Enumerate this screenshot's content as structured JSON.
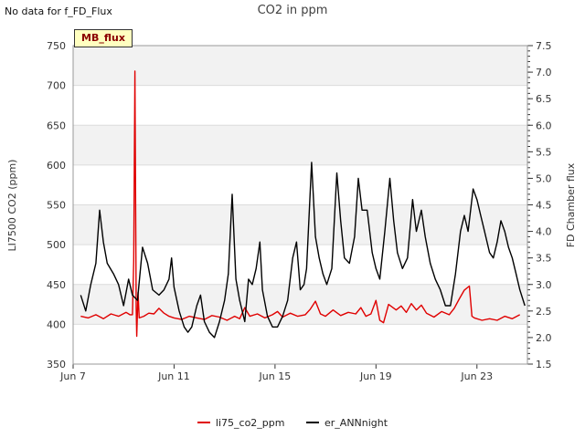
{
  "note": "No data for f_FD_Flux",
  "chart_data": {
    "type": "line",
    "title": "CO2 in ppm",
    "badge": "MB_flux",
    "ylabel_left": "LI7500 CO2 (ppm)",
    "ylabel_right": "FD Chamber flux",
    "ylim_left": [
      350,
      750
    ],
    "yticks_left": [
      350,
      400,
      450,
      500,
      550,
      600,
      650,
      700,
      750
    ],
    "ylim_right": [
      1.5,
      7.5
    ],
    "yticks_right": [
      "1.5",
      "2.0",
      "2.5",
      "3.0",
      "3.5",
      "4.0",
      "4.5",
      "5.0",
      "5.5",
      "6.0",
      "6.5",
      "7.0",
      "7.5"
    ],
    "xlim": [
      7,
      25
    ],
    "xticks": [
      {
        "day": 7,
        "label": "Jun 7"
      },
      {
        "day": 11,
        "label": "Jun 11"
      },
      {
        "day": 15,
        "label": "Jun 15"
      },
      {
        "day": 19,
        "label": "Jun 19"
      },
      {
        "day": 23,
        "label": "Jun 23"
      }
    ],
    "grid": true,
    "legend_position": "bottom",
    "series": [
      {
        "name": "li75_co2_ppm",
        "color": "#e00000",
        "axis": "left",
        "points": [
          [
            7.3,
            410
          ],
          [
            7.6,
            408
          ],
          [
            7.9,
            412
          ],
          [
            8.2,
            407
          ],
          [
            8.5,
            413
          ],
          [
            8.8,
            410
          ],
          [
            9.1,
            415
          ],
          [
            9.25,
            412
          ],
          [
            9.35,
            412
          ],
          [
            9.4,
            480
          ],
          [
            9.45,
            718
          ],
          [
            9.5,
            420
          ],
          [
            9.52,
            385
          ],
          [
            9.57,
            440
          ],
          [
            9.62,
            408
          ],
          [
            9.8,
            410
          ],
          [
            10.0,
            414
          ],
          [
            10.2,
            413
          ],
          [
            10.4,
            420
          ],
          [
            10.6,
            414
          ],
          [
            10.8,
            410
          ],
          [
            11.0,
            408
          ],
          [
            11.3,
            406
          ],
          [
            11.6,
            410
          ],
          [
            11.9,
            408
          ],
          [
            12.2,
            406
          ],
          [
            12.5,
            411
          ],
          [
            12.8,
            409
          ],
          [
            13.1,
            405
          ],
          [
            13.4,
            410
          ],
          [
            13.6,
            407
          ],
          [
            13.8,
            421
          ],
          [
            14.0,
            410
          ],
          [
            14.3,
            413
          ],
          [
            14.6,
            408
          ],
          [
            14.9,
            412
          ],
          [
            15.1,
            416
          ],
          [
            15.3,
            409
          ],
          [
            15.6,
            414
          ],
          [
            15.9,
            410
          ],
          [
            16.2,
            412
          ],
          [
            16.4,
            419
          ],
          [
            16.6,
            429
          ],
          [
            16.8,
            413
          ],
          [
            17.0,
            410
          ],
          [
            17.3,
            418
          ],
          [
            17.6,
            411
          ],
          [
            17.9,
            415
          ],
          [
            18.2,
            413
          ],
          [
            18.4,
            421
          ],
          [
            18.6,
            410
          ],
          [
            18.8,
            413
          ],
          [
            19.0,
            430
          ],
          [
            19.15,
            405
          ],
          [
            19.3,
            402
          ],
          [
            19.5,
            425
          ],
          [
            19.8,
            418
          ],
          [
            20.0,
            423
          ],
          [
            20.2,
            415
          ],
          [
            20.4,
            426
          ],
          [
            20.6,
            418
          ],
          [
            20.8,
            424
          ],
          [
            21.0,
            414
          ],
          [
            21.3,
            409
          ],
          [
            21.6,
            416
          ],
          [
            21.9,
            412
          ],
          [
            22.1,
            420
          ],
          [
            22.3,
            432
          ],
          [
            22.5,
            443
          ],
          [
            22.7,
            448
          ],
          [
            22.8,
            410
          ],
          [
            22.9,
            408
          ],
          [
            23.2,
            405
          ],
          [
            23.5,
            407
          ],
          [
            23.8,
            405
          ],
          [
            24.1,
            410
          ],
          [
            24.4,
            407
          ],
          [
            24.7,
            412
          ]
        ]
      },
      {
        "name": "er_ANNnight",
        "color": "#000000",
        "axis": "right",
        "points": [
          [
            7.3,
            2.8
          ],
          [
            7.5,
            2.5
          ],
          [
            7.7,
            3.0
          ],
          [
            7.9,
            3.4
          ],
          [
            8.05,
            4.4
          ],
          [
            8.2,
            3.8
          ],
          [
            8.35,
            3.4
          ],
          [
            8.6,
            3.2
          ],
          [
            8.8,
            3.0
          ],
          [
            9.0,
            2.6
          ],
          [
            9.2,
            3.1
          ],
          [
            9.35,
            2.8
          ],
          [
            9.55,
            2.7
          ],
          [
            9.75,
            3.7
          ],
          [
            9.95,
            3.4
          ],
          [
            10.15,
            2.9
          ],
          [
            10.4,
            2.8
          ],
          [
            10.6,
            2.9
          ],
          [
            10.8,
            3.1
          ],
          [
            10.9,
            3.5
          ],
          [
            11.0,
            2.95
          ],
          [
            11.2,
            2.5
          ],
          [
            11.4,
            2.2
          ],
          [
            11.55,
            2.1
          ],
          [
            11.7,
            2.2
          ],
          [
            11.9,
            2.6
          ],
          [
            12.05,
            2.8
          ],
          [
            12.2,
            2.3
          ],
          [
            12.4,
            2.1
          ],
          [
            12.6,
            2.0
          ],
          [
            12.8,
            2.3
          ],
          [
            13.0,
            2.7
          ],
          [
            13.15,
            3.2
          ],
          [
            13.3,
            4.7
          ],
          [
            13.45,
            3.1
          ],
          [
            13.6,
            2.7
          ],
          [
            13.8,
            2.3
          ],
          [
            13.95,
            3.1
          ],
          [
            14.1,
            3.0
          ],
          [
            14.25,
            3.3
          ],
          [
            14.4,
            3.8
          ],
          [
            14.5,
            2.9
          ],
          [
            14.7,
            2.4
          ],
          [
            14.9,
            2.2
          ],
          [
            15.1,
            2.2
          ],
          [
            15.3,
            2.4
          ],
          [
            15.5,
            2.7
          ],
          [
            15.7,
            3.5
          ],
          [
            15.85,
            3.8
          ],
          [
            16.0,
            2.9
          ],
          [
            16.15,
            3.0
          ],
          [
            16.25,
            3.3
          ],
          [
            16.45,
            5.3
          ],
          [
            16.6,
            3.9
          ],
          [
            16.75,
            3.5
          ],
          [
            16.9,
            3.2
          ],
          [
            17.05,
            3.0
          ],
          [
            17.25,
            3.3
          ],
          [
            17.45,
            5.1
          ],
          [
            17.6,
            4.2
          ],
          [
            17.75,
            3.5
          ],
          [
            17.95,
            3.4
          ],
          [
            18.15,
            3.9
          ],
          [
            18.3,
            5.0
          ],
          [
            18.45,
            4.4
          ],
          [
            18.65,
            4.4
          ],
          [
            18.85,
            3.6
          ],
          [
            19.0,
            3.3
          ],
          [
            19.15,
            3.1
          ],
          [
            19.35,
            4.0
          ],
          [
            19.55,
            5.0
          ],
          [
            19.7,
            4.2
          ],
          [
            19.85,
            3.6
          ],
          [
            20.05,
            3.3
          ],
          [
            20.25,
            3.5
          ],
          [
            20.45,
            4.6
          ],
          [
            20.6,
            4.0
          ],
          [
            20.8,
            4.4
          ],
          [
            20.95,
            3.9
          ],
          [
            21.15,
            3.4
          ],
          [
            21.35,
            3.1
          ],
          [
            21.55,
            2.9
          ],
          [
            21.75,
            2.6
          ],
          [
            21.95,
            2.6
          ],
          [
            22.15,
            3.2
          ],
          [
            22.35,
            4.0
          ],
          [
            22.5,
            4.3
          ],
          [
            22.65,
            4.0
          ],
          [
            22.85,
            4.8
          ],
          [
            23.0,
            4.6
          ],
          [
            23.15,
            4.3
          ],
          [
            23.3,
            4.0
          ],
          [
            23.5,
            3.6
          ],
          [
            23.65,
            3.5
          ],
          [
            23.8,
            3.8
          ],
          [
            23.95,
            4.2
          ],
          [
            24.1,
            4.0
          ],
          [
            24.25,
            3.7
          ],
          [
            24.4,
            3.5
          ],
          [
            24.55,
            3.2
          ],
          [
            24.7,
            2.9
          ],
          [
            24.9,
            2.6
          ]
        ]
      }
    ]
  }
}
